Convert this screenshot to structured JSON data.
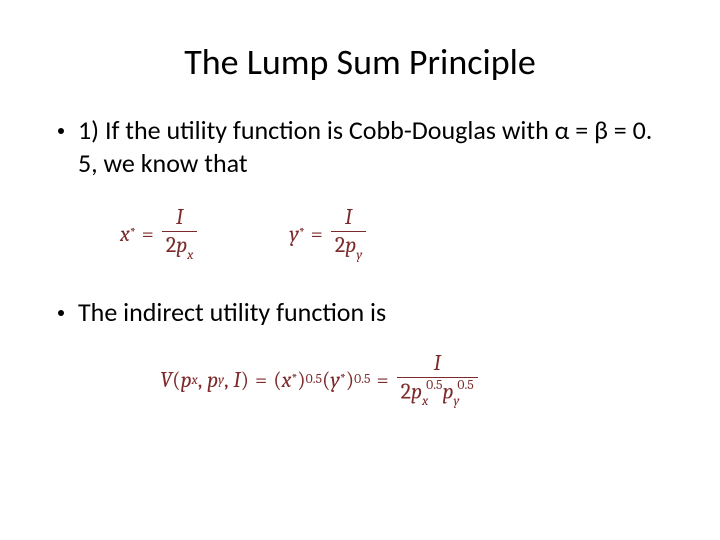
{
  "slide": {
    "title": "The Lump Sum Principle",
    "bullet1_text": "1) If the utility function is Cobb-Douglas with α = β = 0. 5, we know that",
    "bullet2_text": "The indirect utility function is",
    "math_color": "#7c2a2a",
    "text_color": "#000000",
    "background_color": "#ffffff",
    "title_fontsize": 36,
    "body_fontsize": 26,
    "math_fontsize": 22,
    "eq1": {
      "lhs_var": "x",
      "lhs_star": "*",
      "numer": "I",
      "denom_coeff": "2",
      "denom_var": "p",
      "denom_sub": "x"
    },
    "eq2": {
      "lhs_var": "y",
      "lhs_star": "*",
      "numer": "I",
      "denom_coeff": "2",
      "denom_var": "p",
      "denom_sub": "y"
    },
    "eq3": {
      "V": "V",
      "open": "(",
      "px_var": "p",
      "px_sub": "x",
      "comma1": ",",
      "py_var": "p",
      "py_sub": "y",
      "comma2": ",",
      "I": "I",
      "close": ")",
      "x": "x",
      "y": "y",
      "star": "*",
      "exp": "0.5",
      "frac_numer": "I",
      "frac_denom_coeff": "2",
      "frac_denom_px_var": "p",
      "frac_denom_px_sub": "x",
      "frac_denom_px_exp": "0.5",
      "frac_denom_py_var": "p",
      "frac_denom_py_sub": "y",
      "frac_denom_py_exp": "0.5"
    }
  }
}
